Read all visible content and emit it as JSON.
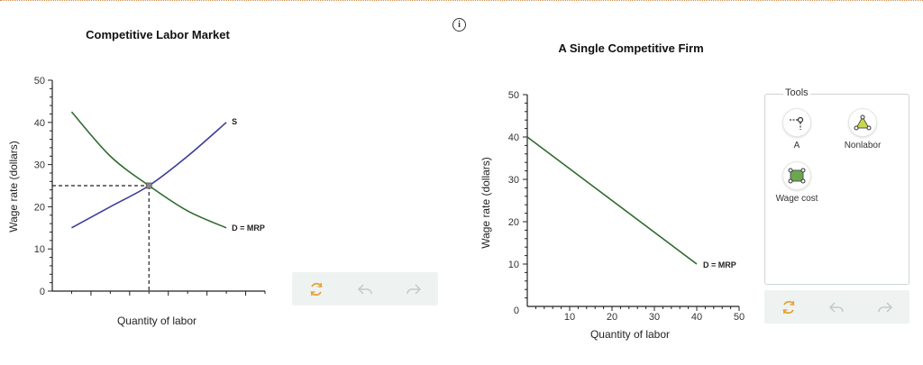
{
  "info": {
    "label": "i"
  },
  "toolbar_icons": {
    "reset": "reset-icon",
    "undo": "undo-icon",
    "redo": "redo-icon"
  },
  "tools": {
    "title": "Tools",
    "items": [
      {
        "label": "A",
        "icon": "point-marker-icon"
      },
      {
        "label": "Nonlabor",
        "icon": "triangle-shape-icon",
        "color": "#c8d84a"
      },
      {
        "label": "Wage cost",
        "icon": "square-shape-icon",
        "color": "#6aa84f"
      }
    ]
  },
  "colors": {
    "supply": "#3c3c9a",
    "demand": "#2f6b2f",
    "tools_accent": "#e8a33a"
  },
  "chart_data": [
    {
      "type": "line",
      "title": "Competitive Labor Market",
      "xlabel": "Quantity of labor",
      "ylabel": "Wage rate (dollars)",
      "ylim": [
        0,
        50
      ],
      "y_ticks": [
        0,
        10,
        20,
        30,
        40,
        50
      ],
      "x_ticks_labeled": false,
      "series": [
        {
          "name": "S",
          "points": [
            [
              1,
              15
            ],
            [
              3,
              20
            ],
            [
              5,
              25
            ],
            [
              7,
              32
            ],
            [
              9,
              40
            ]
          ]
        },
        {
          "name": "D = MRP",
          "points": [
            [
              1,
              42.5
            ],
            [
              3,
              32
            ],
            [
              5,
              25
            ],
            [
              7,
              19
            ],
            [
              9,
              15
            ]
          ]
        }
      ],
      "equilibrium": {
        "x": 5,
        "wage": 25
      },
      "xlim": [
        0,
        11
      ]
    },
    {
      "type": "line",
      "title": "A Single Competitive Firm",
      "xlabel": "Quantity of labor",
      "ylabel": "Wage rate (dollars)",
      "xlim": [
        0,
        50
      ],
      "ylim": [
        0,
        50
      ],
      "x_ticks": [
        10,
        20,
        30,
        40,
        50
      ],
      "y_ticks": [
        10,
        20,
        30,
        40,
        50
      ],
      "origin_label": "0",
      "series": [
        {
          "name": "D = MRP",
          "points": [
            [
              0,
              40
            ],
            [
              40,
              10
            ]
          ]
        }
      ]
    }
  ]
}
